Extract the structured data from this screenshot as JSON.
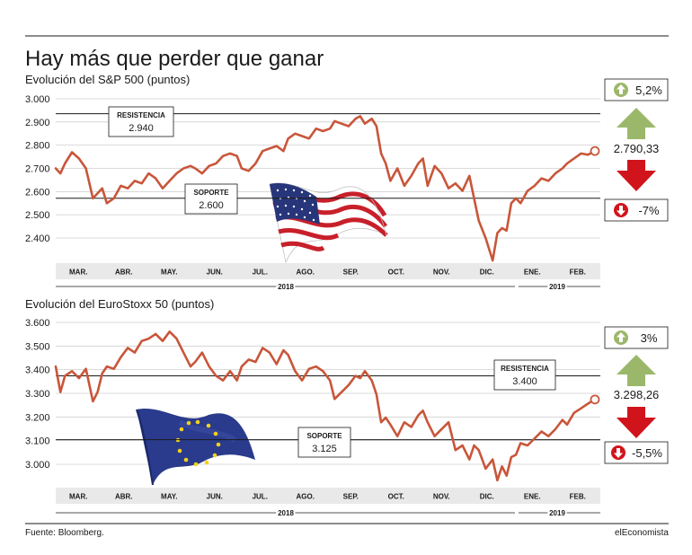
{
  "title": "Hay más que perder que ganar",
  "source": "Fuente: Bloomberg.",
  "brand": "elEconomista",
  "colors": {
    "line": "#c8563a",
    "up": "#9bb86a",
    "down": "#d1141b",
    "grid": "#1a1a1a",
    "axis_band": "#e9e9e9",
    "text": "#1a1a1a"
  },
  "chart_data": [
    {
      "type": "line",
      "title": "Evolución del S&P 500 (puntos)",
      "months": [
        "MAR.",
        "ABR.",
        "MAY.",
        "JUN.",
        "JUL.",
        "AGO.",
        "SEP.",
        "OCT.",
        "NOV.",
        "DIC.",
        "ENE.",
        "FEB."
      ],
      "year_labels": [
        "2018",
        "2019"
      ],
      "y_ticks": [
        "3.000",
        "2.900",
        "2.800",
        "2.700",
        "2.600",
        "2.500",
        "2.400"
      ],
      "ylim": [
        2350,
        3000
      ],
      "x": [
        0,
        0.1,
        0.2,
        0.35,
        0.5,
        0.65,
        0.8,
        0.9,
        1.0,
        1.1,
        1.25,
        1.4,
        1.55,
        1.7,
        1.85,
        2.0,
        2.15,
        2.3,
        2.45,
        2.6,
        2.75,
        2.9,
        3.0,
        3.15,
        3.3,
        3.45,
        3.6,
        3.75,
        3.9,
        4.0,
        4.15,
        4.3,
        4.45,
        4.6,
        4.75,
        4.9,
        5.0,
        5.15,
        5.3,
        5.45,
        5.6,
        5.75,
        5.9,
        6.0,
        6.15,
        6.3,
        6.45,
        6.55,
        6.65,
        6.8,
        6.9,
        7.0,
        7.1,
        7.2,
        7.35,
        7.5,
        7.65,
        7.8,
        7.9,
        8.0,
        8.15,
        8.3,
        8.45,
        8.6,
        8.75,
        8.9,
        9.0,
        9.1,
        9.25,
        9.4,
        9.5,
        9.6,
        9.7,
        9.8,
        9.9,
        10.0,
        10.15,
        10.3,
        10.45,
        10.6,
        10.75,
        10.9,
        11.0,
        11.15,
        11.3,
        11.45,
        11.6
      ],
      "values": [
        2720,
        2700,
        2740,
        2785,
        2760,
        2720,
        2600,
        2620,
        2640,
        2580,
        2600,
        2650,
        2640,
        2670,
        2660,
        2700,
        2680,
        2640,
        2670,
        2700,
        2720,
        2730,
        2720,
        2700,
        2730,
        2740,
        2770,
        2780,
        2770,
        2720,
        2710,
        2740,
        2790,
        2800,
        2810,
        2790,
        2840,
        2860,
        2850,
        2840,
        2880,
        2870,
        2880,
        2910,
        2900,
        2890,
        2920,
        2930,
        2900,
        2920,
        2890,
        2780,
        2740,
        2670,
        2720,
        2650,
        2690,
        2740,
        2760,
        2650,
        2730,
        2700,
        2640,
        2660,
        2630,
        2690,
        2600,
        2510,
        2440,
        2350,
        2460,
        2480,
        2470,
        2580,
        2600,
        2580,
        2630,
        2650,
        2680,
        2670,
        2700,
        2720,
        2740,
        2760,
        2780,
        2775,
        2790
      ],
      "reference_lines": [
        {
          "label": "RESISTENCIA",
          "value_text": "2.940",
          "value": 2940
        },
        {
          "label": "SOPORTE",
          "value_text": "2.600",
          "value": 2600
        }
      ],
      "last_value": "2.790,33",
      "upside": "5,2%",
      "downside": "-7%",
      "flag": "united-states-flag"
    },
    {
      "type": "line",
      "title": "Evolución del EuroStoxx 50 (puntos)",
      "months": [
        "MAR.",
        "ABR.",
        "MAY.",
        "JUN.",
        "JUL.",
        "AGO.",
        "SEP.",
        "OCT.",
        "NOV.",
        "DIC.",
        "ENE.",
        "FEB."
      ],
      "year_labels": [
        "2018",
        "2019"
      ],
      "y_ticks": [
        "3.600",
        "3.500",
        "3.400",
        "3.300",
        "3.200",
        "3.100",
        "3.000"
      ],
      "ylim": [
        2930,
        3630
      ],
      "x": [
        0,
        0.1,
        0.2,
        0.35,
        0.5,
        0.65,
        0.8,
        0.9,
        1.0,
        1.1,
        1.25,
        1.4,
        1.55,
        1.7,
        1.85,
        2.0,
        2.15,
        2.3,
        2.45,
        2.6,
        2.75,
        2.9,
        3.0,
        3.15,
        3.3,
        3.45,
        3.6,
        3.75,
        3.9,
        4.0,
        4.15,
        4.3,
        4.45,
        4.6,
        4.75,
        4.9,
        5.0,
        5.15,
        5.3,
        5.45,
        5.6,
        5.75,
        5.9,
        6.0,
        6.15,
        6.3,
        6.45,
        6.55,
        6.65,
        6.8,
        6.9,
        7.0,
        7.1,
        7.2,
        7.35,
        7.5,
        7.65,
        7.8,
        7.9,
        8.0,
        8.15,
        8.3,
        8.45,
        8.6,
        8.75,
        8.9,
        9.0,
        9.1,
        9.25,
        9.4,
        9.5,
        9.6,
        9.7,
        9.8,
        9.9,
        10.0,
        10.15,
        10.3,
        10.45,
        10.6,
        10.75,
        10.9,
        11.0,
        11.15,
        11.3,
        11.45,
        11.6
      ],
      "values": [
        3440,
        3330,
        3400,
        3420,
        3390,
        3430,
        3290,
        3330,
        3410,
        3440,
        3430,
        3480,
        3520,
        3500,
        3550,
        3560,
        3580,
        3550,
        3590,
        3560,
        3500,
        3440,
        3460,
        3500,
        3440,
        3400,
        3380,
        3420,
        3380,
        3440,
        3470,
        3460,
        3520,
        3500,
        3450,
        3510,
        3490,
        3420,
        3380,
        3430,
        3440,
        3420,
        3380,
        3300,
        3330,
        3360,
        3400,
        3390,
        3420,
        3380,
        3320,
        3200,
        3220,
        3190,
        3140,
        3200,
        3180,
        3230,
        3250,
        3200,
        3140,
        3170,
        3200,
        3080,
        3100,
        3040,
        3100,
        3080,
        3000,
        3040,
        2950,
        3010,
        2970,
        3050,
        3060,
        3110,
        3100,
        3130,
        3160,
        3140,
        3170,
        3210,
        3190,
        3240,
        3260,
        3280,
        3298
      ],
      "reference_lines": [
        {
          "label": "RESISTENCIA",
          "value_text": "3.400",
          "value": 3400
        },
        {
          "label": "SOPORTE",
          "value_text": "3.125",
          "value": 3125
        }
      ],
      "last_value": "3.298,26",
      "upside": "3%",
      "downside": "-5,5%",
      "flag": "european-union-flag"
    }
  ]
}
